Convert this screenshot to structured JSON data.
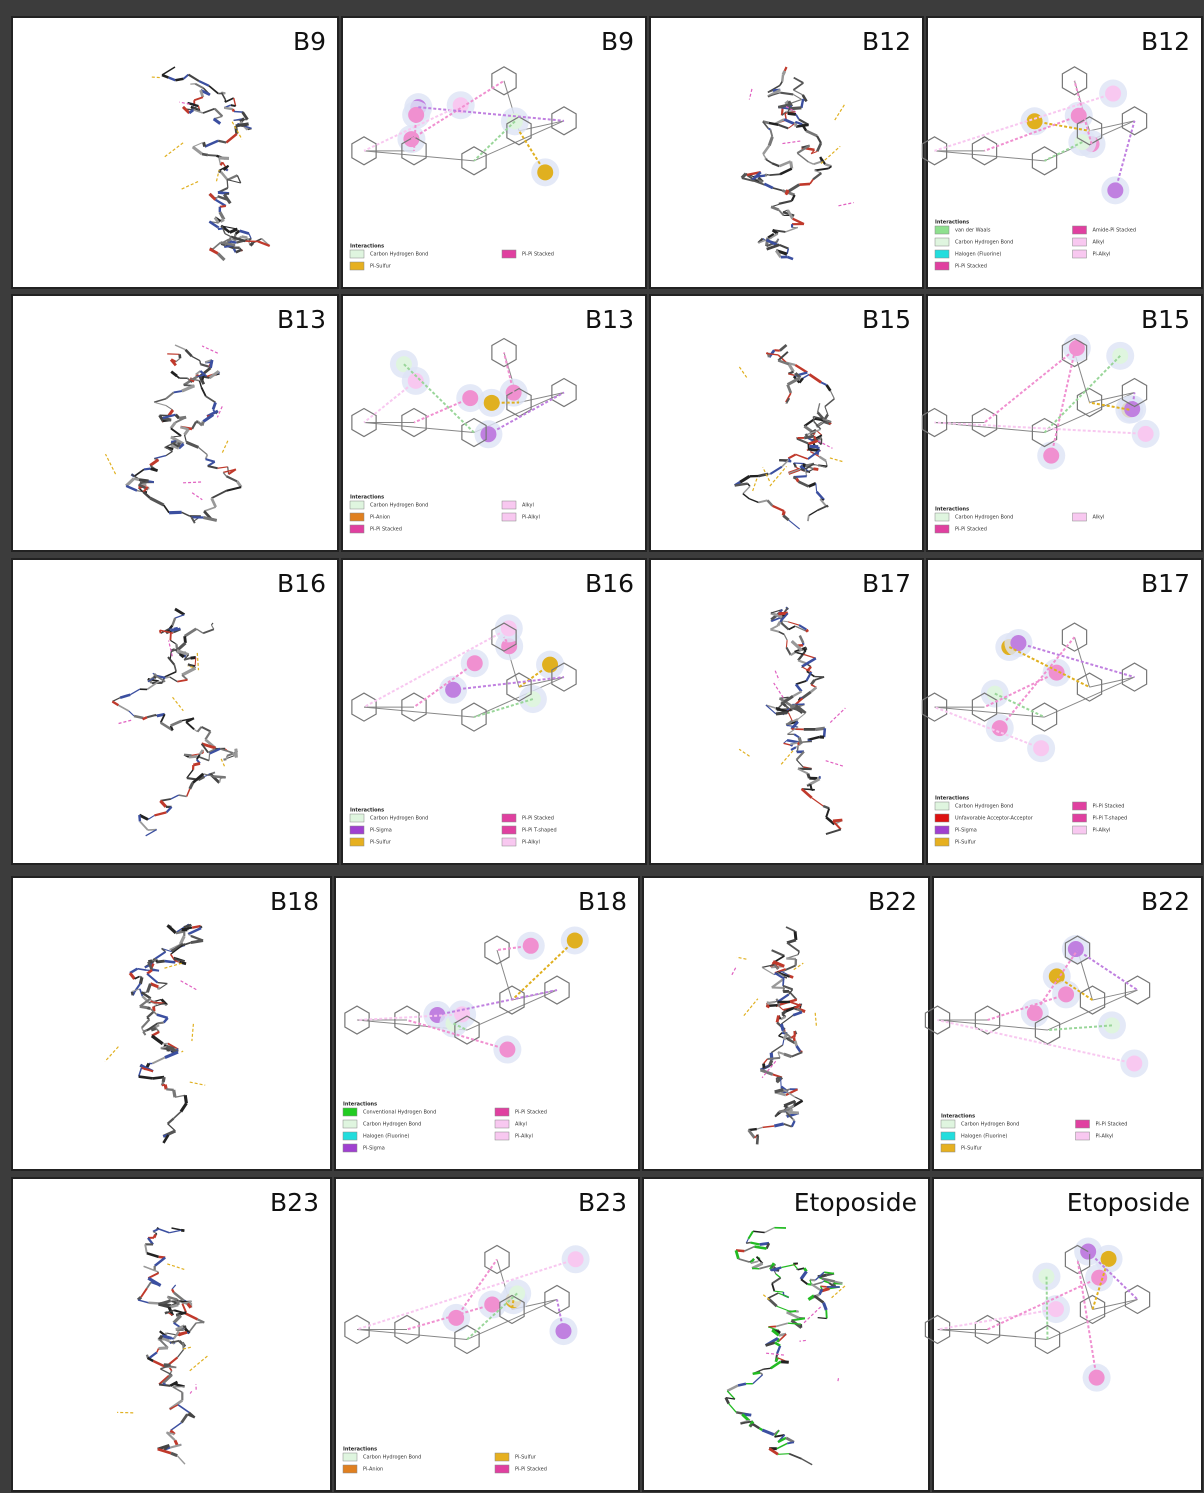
{
  "legend_title": "Interactions",
  "panels": [
    {
      "label": "B9"
    },
    {
      "label": "B9",
      "legend": [
        {
          "name": "Carbon Hydrogen Bond",
          "color": "#dff5df"
        },
        {
          "name": "Pi-Sulfur",
          "color": "#e6b020"
        },
        {
          "name": "Pi-Pi Stacked",
          "color": "#e040a0"
        }
      ]
    },
    {
      "label": "B12"
    },
    {
      "label": "B12",
      "legend": [
        {
          "name": "van der Waals",
          "color": "#8ee08e"
        },
        {
          "name": "Carbon Hydrogen Bond",
          "color": "#dff5df"
        },
        {
          "name": "Halogen (Fluorine)",
          "color": "#22dddd"
        },
        {
          "name": "Pi-Pi Stacked",
          "color": "#e040a0"
        },
        {
          "name": "Amide-Pi Stacked",
          "color": "#e040a0"
        },
        {
          "name": "Alkyl",
          "color": "#f8c8f0"
        },
        {
          "name": "Pi-Alkyl",
          "color": "#f8c8f0"
        }
      ]
    },
    {
      "label": "B13"
    },
    {
      "label": "B13",
      "legend": [
        {
          "name": "Carbon Hydrogen Bond",
          "color": "#dff5df"
        },
        {
          "name": "Pi-Anion",
          "color": "#e08020"
        },
        {
          "name": "Pi-Pi Stacked",
          "color": "#e040a0"
        },
        {
          "name": "Alkyl",
          "color": "#f8c8f0"
        },
        {
          "name": "Pi-Alkyl",
          "color": "#f8c8f0"
        }
      ]
    },
    {
      "label": "B15"
    },
    {
      "label": "B15",
      "legend": [
        {
          "name": "Carbon Hydrogen Bond",
          "color": "#dff5df"
        },
        {
          "name": "Pi-Pi Stacked",
          "color": "#e040a0"
        },
        {
          "name": "Alkyl",
          "color": "#f8c8f0"
        }
      ]
    },
    {
      "label": "B16"
    },
    {
      "label": "B16",
      "legend": [
        {
          "name": "Carbon Hydrogen Bond",
          "color": "#dff5df"
        },
        {
          "name": "Pi-Sigma",
          "color": "#a040d0"
        },
        {
          "name": "Pi-Sulfur",
          "color": "#e6b020"
        },
        {
          "name": "Pi-Pi Stacked",
          "color": "#e040a0"
        },
        {
          "name": "Pi-Pi T-shaped",
          "color": "#e040a0"
        },
        {
          "name": "Pi-Alkyl",
          "color": "#f8c8f0"
        }
      ]
    },
    {
      "label": "B17"
    },
    {
      "label": "B17",
      "legend": [
        {
          "name": "Carbon Hydrogen Bond",
          "color": "#dff5df"
        },
        {
          "name": "Unfavorable Acceptor-Acceptor",
          "color": "#dd1111"
        },
        {
          "name": "Pi-Sigma",
          "color": "#a040d0"
        },
        {
          "name": "Pi-Sulfur",
          "color": "#e6b020"
        },
        {
          "name": "Pi-Pi Stacked",
          "color": "#e040a0"
        },
        {
          "name": "Pi-Pi T-shaped",
          "color": "#e040a0"
        },
        {
          "name": "Pi-Alkyl",
          "color": "#f8c8f0"
        }
      ]
    },
    {
      "label": "B18"
    },
    {
      "label": "B18",
      "legend": [
        {
          "name": "Conventional Hydrogen Bond",
          "color": "#22cc22"
        },
        {
          "name": "Carbon Hydrogen Bond",
          "color": "#dff5df"
        },
        {
          "name": "Halogen (Fluorine)",
          "color": "#22dddd"
        },
        {
          "name": "Pi-Sigma",
          "color": "#a040d0"
        },
        {
          "name": "Pi-Pi Stacked",
          "color": "#e040a0"
        },
        {
          "name": "Alkyl",
          "color": "#f8c8f0"
        },
        {
          "name": "Pi-Alkyl",
          "color": "#f8c8f0"
        }
      ]
    },
    {
      "label": "B22"
    },
    {
      "label": "B22",
      "legend": [
        {
          "name": "Carbon Hydrogen Bond",
          "color": "#dff5df"
        },
        {
          "name": "Halogen (Fluorine)",
          "color": "#22dddd"
        },
        {
          "name": "Pi-Sulfur",
          "color": "#e6b020"
        },
        {
          "name": "Pi-Pi Stacked",
          "color": "#e040a0"
        },
        {
          "name": "Pi-Alkyl",
          "color": "#f8c8f0"
        }
      ]
    },
    {
      "label": "B23"
    },
    {
      "label": "B23",
      "legend": [
        {
          "name": "Carbon Hydrogen Bond",
          "color": "#dff5df"
        },
        {
          "name": "Pi-Anion",
          "color": "#e08020"
        },
        {
          "name": "Pi-Sulfur",
          "color": "#e6b020"
        },
        {
          "name": "Pi-Pi Stacked",
          "color": "#e040a0"
        }
      ]
    },
    {
      "label": "Etoposide"
    },
    {
      "label": "Etoposide"
    }
  ]
}
